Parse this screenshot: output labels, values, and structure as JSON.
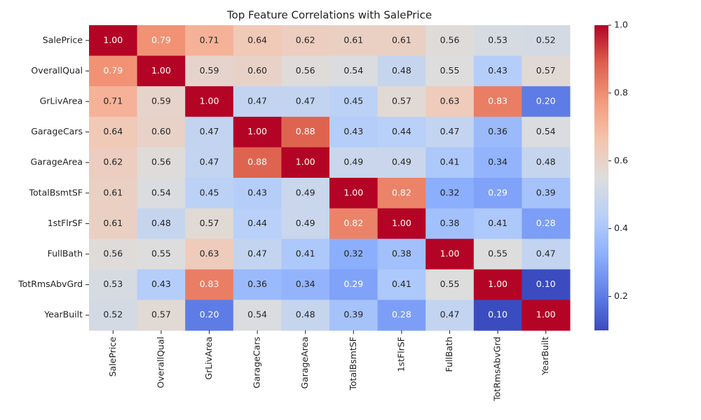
{
  "chart_data": {
    "type": "heatmap",
    "title": "Top Feature Correlations with SalePrice",
    "categories": [
      "SalePrice",
      "OverallQual",
      "GrLivArea",
      "GarageCars",
      "GarageArea",
      "TotalBsmtSF",
      "1stFlrSF",
      "FullBath",
      "TotRmsAbvGrd",
      "YearBuilt"
    ],
    "values": [
      [
        1.0,
        0.79,
        0.71,
        0.64,
        0.62,
        0.61,
        0.61,
        0.56,
        0.53,
        0.52
      ],
      [
        0.79,
        1.0,
        0.59,
        0.6,
        0.56,
        0.54,
        0.48,
        0.55,
        0.43,
        0.57
      ],
      [
        0.71,
        0.59,
        1.0,
        0.47,
        0.47,
        0.45,
        0.57,
        0.63,
        0.83,
        0.2
      ],
      [
        0.64,
        0.6,
        0.47,
        1.0,
        0.88,
        0.43,
        0.44,
        0.47,
        0.36,
        0.54
      ],
      [
        0.62,
        0.56,
        0.47,
        0.88,
        1.0,
        0.49,
        0.49,
        0.41,
        0.34,
        0.48
      ],
      [
        0.61,
        0.54,
        0.45,
        0.43,
        0.49,
        1.0,
        0.82,
        0.32,
        0.29,
        0.39
      ],
      [
        0.61,
        0.48,
        0.57,
        0.44,
        0.49,
        0.82,
        1.0,
        0.38,
        0.41,
        0.28
      ],
      [
        0.56,
        0.55,
        0.63,
        0.47,
        0.41,
        0.32,
        0.38,
        1.0,
        0.55,
        0.47
      ],
      [
        0.53,
        0.43,
        0.83,
        0.36,
        0.34,
        0.29,
        0.41,
        0.55,
        1.0,
        0.1
      ],
      [
        0.52,
        0.57,
        0.2,
        0.54,
        0.48,
        0.39,
        0.28,
        0.47,
        0.1,
        1.0
      ]
    ],
    "value_labels": [
      [
        "1.00",
        "0.79",
        "0.71",
        "0.64",
        "0.62",
        "0.61",
        "0.61",
        "0.56",
        "0.53",
        "0.52"
      ],
      [
        "0.79",
        "1.00",
        "0.59",
        "0.60",
        "0.56",
        "0.54",
        "0.48",
        "0.55",
        "0.43",
        "0.57"
      ],
      [
        "0.71",
        "0.59",
        "1.00",
        "0.47",
        "0.47",
        "0.45",
        "0.57",
        "0.63",
        "0.83",
        "0.20"
      ],
      [
        "0.64",
        "0.60",
        "0.47",
        "1.00",
        "0.88",
        "0.43",
        "0.44",
        "0.47",
        "0.36",
        "0.54"
      ],
      [
        "0.62",
        "0.56",
        "0.47",
        "0.88",
        "1.00",
        "0.49",
        "0.49",
        "0.41",
        "0.34",
        "0.48"
      ],
      [
        "0.61",
        "0.54",
        "0.45",
        "0.43",
        "0.49",
        "1.00",
        "0.82",
        "0.32",
        "0.29",
        "0.39"
      ],
      [
        "0.61",
        "0.48",
        "0.57",
        "0.44",
        "0.49",
        "0.82",
        "1.00",
        "0.38",
        "0.41",
        "0.28"
      ],
      [
        "0.56",
        "0.55",
        "0.63",
        "0.47",
        "0.41",
        "0.32",
        "0.38",
        "1.00",
        "0.55",
        "0.47"
      ],
      [
        "0.53",
        "0.43",
        "0.83",
        "0.36",
        "0.34",
        "0.29",
        "0.41",
        "0.55",
        "1.00",
        "0.10"
      ],
      [
        "0.52",
        "0.57",
        "0.20",
        "0.54",
        "0.48",
        "0.39",
        "0.28",
        "0.47",
        "0.10",
        "1.00"
      ]
    ],
    "colormap": "coolwarm",
    "clim": [
      0.1,
      1.0
    ],
    "cticks": [
      0.2,
      0.4,
      0.6,
      0.8,
      {
        "value": 1.0,
        "label": "1.0"
      }
    ]
  }
}
